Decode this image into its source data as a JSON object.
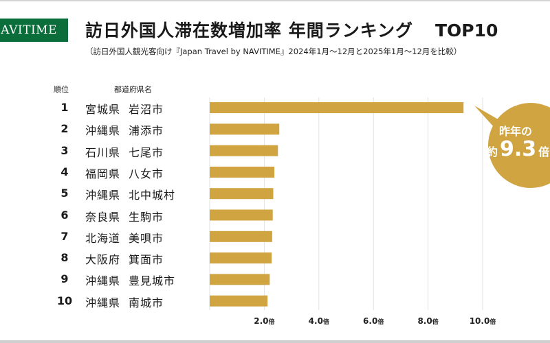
{
  "header": {
    "logo_text": "NAVITIME",
    "title": "訪日外国人滞在数増加率 年間ランキング",
    "title_suffix": "TOP10",
    "subtitle": "（訪日外国人観光客向け『Japan Travel by NAVITIME』2024年1月～12月と2025年1月～12月を比較）"
  },
  "columns": {
    "rank": "順位",
    "name": "都道府県名"
  },
  "callout": {
    "line1": "昨年の",
    "prefix": "約",
    "value": "9.3",
    "suffix": "倍"
  },
  "colors": {
    "bar": "#d0a441",
    "logo_bg": "#0b6e3a",
    "grid": "#e2e2e2"
  },
  "chart_data": {
    "type": "bar",
    "orientation": "horizontal",
    "title": "訪日外国人滞在数増加率 年間ランキング TOP10",
    "xlabel": "",
    "ylabel": "都道府県名",
    "unit": "倍",
    "xlim": [
      0,
      10.0
    ],
    "grid": true,
    "x_ticks": [
      2.0,
      4.0,
      6.0,
      8.0,
      10.0
    ],
    "x_tick_labels": [
      "2.0",
      "4.0",
      "6.0",
      "8.0",
      "10.0"
    ],
    "categories": [
      {
        "rank": "1",
        "prefecture": "宮城県",
        "city": "岩沼市"
      },
      {
        "rank": "2",
        "prefecture": "沖縄県",
        "city": "浦添市"
      },
      {
        "rank": "3",
        "prefecture": "石川県",
        "city": "七尾市"
      },
      {
        "rank": "4",
        "prefecture": "福岡県",
        "city": "八女市"
      },
      {
        "rank": "5",
        "prefecture": "沖縄県",
        "city": "北中城村"
      },
      {
        "rank": "6",
        "prefecture": "奈良県",
        "city": "生駒市"
      },
      {
        "rank": "7",
        "prefecture": "北海道",
        "city": "美唄市"
      },
      {
        "rank": "8",
        "prefecture": "大阪府",
        "city": "箕面市"
      },
      {
        "rank": "9",
        "prefecture": "沖縄県",
        "city": "豊見城市"
      },
      {
        "rank": "10",
        "prefecture": "沖縄県",
        "city": "南城市"
      }
    ],
    "values": [
      9.3,
      2.55,
      2.5,
      2.37,
      2.33,
      2.31,
      2.29,
      2.27,
      2.2,
      2.12
    ],
    "annotation": "昨年の約9.3倍"
  }
}
